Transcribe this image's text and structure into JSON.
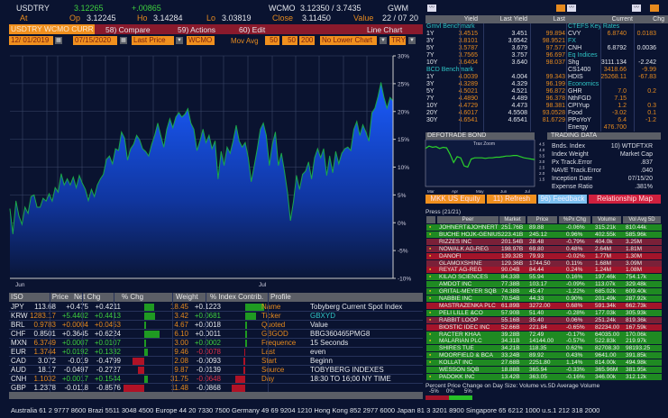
{
  "quote": {
    "symbol": "USDTRY",
    "last": "3.12265",
    "change": "+.00865",
    "source": "WCMO",
    "bid_ask": "3.12350 / 3.7435",
    "gwm": "GWM",
    "at_label": "At",
    "op_label": "Op",
    "open": "3.12245",
    "ho_label": "Ho",
    "high": "3.14284",
    "lo_label": "Lo",
    "low": "3.03819",
    "close_label": "Close",
    "close": "3.11450",
    "value_label": "Value",
    "value": "22 / 07 20"
  },
  "menu": {
    "security": "USDTRY  WCMO  CURR",
    "compare": "58) Compare",
    "actions": "59) Actions",
    "edit": "60) Edit",
    "chart_type": "Line Chart"
  },
  "controls": {
    "start_date": "12/ 01/2019",
    "end_date": "07/15/2020",
    "field": "Last Price",
    "source": "WCMO",
    "mov_avg_label": "Mov  Avg",
    "ma1": "50",
    "ma2": "50",
    "ma3": "200",
    "lower_chart": "No Lower  Chart",
    "currency": "TRY"
  },
  "chart_data": {
    "type": "area",
    "title": "USDTRY Line Chart",
    "x_tick_labels": [
      "Jun",
      "Jul"
    ],
    "y_tick_labels": [
      "30%",
      "25%",
      "20%",
      "15%",
      "10%",
      "5%",
      "0%",
      "-5%",
      "-10%"
    ],
    "ylim": [
      -10,
      30
    ],
    "ylabel": "%",
    "grid": true,
    "values": [
      2.5,
      -2.0,
      3.9,
      1.2,
      -0.3,
      2.8,
      1.7,
      4.7,
      5.0,
      2.8,
      2.8,
      4.4,
      3.9,
      5.2,
      3.9,
      6.3,
      5.5,
      8.8,
      6.8,
      7.9,
      6.8,
      8.2,
      6.3,
      8.5,
      7.1,
      6.0,
      4.0,
      6.0,
      4.7,
      6.8,
      7.9,
      8.7,
      11.4,
      12.0,
      10.6,
      13.3,
      13.0,
      16.3,
      15.2,
      11.3,
      13.3,
      14.1,
      15.7,
      14.9,
      13.3,
      12.8,
      12.0,
      14.1,
      15.7,
      17.9,
      15.7,
      13.6,
      16.8,
      18.7,
      17.1,
      19.0,
      19.8,
      19.0,
      19.5,
      20.5,
      17.9,
      16.8,
      13.0,
      14.7,
      16.8,
      14.4,
      15.7,
      13.3,
      14.7,
      7.9,
      12.8,
      10.3,
      13.6,
      12.5,
      14.7,
      17.5,
      14.7,
      13.6,
      14.4,
      11.7,
      7.4,
      10.3,
      13.3,
      16.8,
      17.9,
      15.7,
      10.3,
      14.1,
      16.3,
      10.3,
      12.5,
      9.3,
      5.5,
      0.4,
      3.9,
      8.5,
      6.0,
      8.7,
      9.3,
      10.9,
      7.9,
      11.7,
      13.3,
      11.7,
      13.3,
      8.5,
      12.0,
      9.0,
      12.8,
      10.6,
      12.5,
      13.3,
      13.6,
      13.0,
      16.8,
      18.2,
      15.7,
      17.6,
      16.3,
      14.7,
      19.8,
      20.6,
      22.7,
      25.2,
      22.5,
      20.6,
      22.5,
      21.9
    ]
  },
  "rates": {
    "headers": [
      "Yield",
      "Last Yield",
      "Last",
      "Current",
      "Chg"
    ],
    "left": [
      {
        "section": "Gmvl Benchmark"
      },
      {
        "t": "1Y",
        "y": "3.4515",
        "ly": "3.451",
        "l": "99.894"
      },
      {
        "t": "3Y",
        "y": "3.8101",
        "ly": "3.6542",
        "l": "98.9521"
      },
      {
        "t": "5Y",
        "y": "3.5787",
        "ly": "3.679",
        "l": "97.577"
      },
      {
        "t": "7Y",
        "y": "3.7565",
        "ly": "3.757",
        "l": "96.697"
      },
      {
        "t": "10Y",
        "y": "3.6404",
        "ly": "3.640",
        "l": "98.037"
      },
      {
        "section": "BCD Benchmark"
      },
      {
        "t": "1Y",
        "y": "4.0039",
        "ly": "4.004",
        "l": "99.343"
      },
      {
        "t": "3Y",
        "y": "4.3289",
        "ly": "4.329",
        "l": "96.199"
      },
      {
        "t": "5Y",
        "y": "4.5021",
        "ly": "4.521",
        "l": "96.872"
      },
      {
        "t": "7Y",
        "y": "4.4890",
        "ly": "4.489",
        "l": "96.378"
      },
      {
        "t": "10Y",
        "y": "4.4729",
        "ly": "4.473",
        "l": "98.381"
      },
      {
        "t": "20Y",
        "y": "4.6017",
        "ly": "4.5508",
        "l": "93.0528"
      },
      {
        "t": "30Y",
        "y": "4.6541",
        "ly": "4.6541",
        "l": "81.6729"
      }
    ],
    "right": [
      {
        "section": "CTEFS Key Rates"
      },
      {
        "t": "CVY",
        "c": "6.8740",
        "g": "0.0183",
        "col": "or"
      },
      {
        "section": "FX"
      },
      {
        "t": "CNH",
        "c": "6.8792",
        "g": "0.0036",
        "col": "wh"
      },
      {
        "section": "Eq Indices"
      },
      {
        "t": "Shg",
        "c": "3111.134",
        "g": "-2.242",
        "col": "wh"
      },
      {
        "t": "CS1400",
        "c": "3418.66",
        "g": "-9.99",
        "col": "or"
      },
      {
        "t": "HDIS",
        "c": "25268.11",
        "g": "-67.83",
        "col": "or"
      },
      {
        "section": "Economics"
      },
      {
        "t": "GHR",
        "c": "7.0",
        "g": "0.2",
        "col": "or"
      },
      {
        "t": "NthFGD",
        "c": "7.15",
        "g": "",
        "col": "or"
      },
      {
        "t": "CPIYup",
        "c": "1.2",
        "g": "0.3",
        "col": "or"
      },
      {
        "t": "Food",
        "c": "-3.02",
        "g": "0.1",
        "col": "or"
      },
      {
        "t": "PPoYoY",
        "c": "6.4",
        "g": "-1.2",
        "col": "or"
      },
      {
        "t": "Energy",
        "c": "476.700",
        "g": "",
        "col": "or"
      }
    ]
  },
  "bond": {
    "title": "DEFOTRADE BOND",
    "trax": "Trax  Zoom",
    "y_ticks": [
      "4.5",
      "4.0",
      "3.5",
      "3.0",
      "2.5",
      "2.0",
      "1.5"
    ],
    "x_ticks": [
      "Mar",
      "Apr",
      "May",
      "Jun",
      "Jul"
    ],
    "ylim": [
      1.0,
      4.7
    ],
    "values": [
      4.1,
      4.3,
      4.2,
      4.25,
      4.1,
      4.2,
      4.15,
      3.6,
      2.9,
      3.4,
      3.3,
      2.6,
      2.5,
      3.2,
      3.3,
      3.3,
      3.3,
      3.25,
      3.3,
      3.3,
      3.35,
      3.35,
      3.4,
      3.45,
      3.45,
      3.5,
      3.5,
      3.4,
      3.3,
      3.25,
      3.2,
      3.15
    ]
  },
  "trading": {
    "title": "TRADING DATA",
    "rows": [
      {
        "k": "Bnds. Index",
        "v": "10) WTDFTXR"
      },
      {
        "k": "Index Weight",
        "v": "Market Cap"
      },
      {
        "k": "Px Track.Error",
        "v": ".837"
      },
      {
        "k": "NAVE Track.Error",
        "v": ".040"
      },
      {
        "k": "Inception Date",
        "v": "07/15/20"
      },
      {
        "k": "Expense Ratio",
        "v": ".381%"
      }
    ]
  },
  "buttons": {
    "equity": "MKK US Equity",
    "refresh": "11) Refresh",
    "feedback": "96) Feedback",
    "relmap": "Relationship Map"
  },
  "peers": {
    "title": "Press (21/21)",
    "headers": [
      "Peer",
      "Market Cap",
      "Price",
      "%Px Chg",
      "Volume",
      "Vol Avg 5D"
    ],
    "rows": [
      [
        "JOHNERT&JOHNERT",
        "251.76B",
        "89.88",
        "-0.06%",
        "315.21k",
        "810.44k",
        "g"
      ],
      [
        "BUCHE HOJK-GENIUS",
        "223.41B",
        "245.12",
        "0.96%",
        "402.55k",
        "585.96k",
        "g"
      ],
      [
        "RIZZES INC",
        "201.54B",
        "28.48",
        "-0.79%",
        "404.0k",
        "3.25M",
        "m"
      ],
      [
        "NOWALK AG-REG",
        "198.97B",
        "69.80",
        "0.48%",
        "2.64M",
        "1.81M",
        "m"
      ],
      [
        "DANOFI",
        "139.32B",
        "79.93",
        "-0.02%",
        "1.77M",
        "1.30M",
        "r"
      ],
      [
        "GLAMOXSHINE",
        "129.36B",
        "1744.50",
        "0.11%",
        "1.68M",
        "3.09M",
        "m"
      ],
      [
        "REYAT AG-REG",
        "90.04B",
        "84.44",
        "0.24%",
        "1.24M",
        "1.08M",
        "r"
      ],
      [
        "KILAO SCIENCES",
        "84.33B",
        "55.94",
        "0.16%",
        "197.46k",
        "754.17k",
        "g"
      ],
      [
        "AMDOT INC",
        "77.38B",
        "103.17",
        "-0.09%",
        "113.07k",
        "329.48k",
        "g"
      ],
      [
        "GRITAL-MEYER SQB",
        "74.38B",
        "45.47",
        "-1.22%",
        "685.02k",
        "609.40k",
        "g"
      ],
      [
        "NABBIE INC",
        "70.54B",
        "44.33",
        "0.90%",
        "201.49k",
        "287.92k",
        "g"
      ],
      [
        "MASTRAZENKA PLC",
        "61.89B",
        "3272.00",
        "0.68%",
        "591.34k",
        "662.73k",
        "r"
      ],
      [
        "PELI LILLE &CO",
        "57.90B",
        "51.40",
        "-0.28%",
        "177.03k",
        "305.93k",
        "g"
      ],
      [
        "RABBIT LOOP",
        "55.16B",
        "35.40",
        "0.06%",
        "251.24k",
        "819.36k",
        "m"
      ],
      [
        "BIOSTIC IDEC INC",
        "52.66B",
        "221.84",
        "-0.65%",
        "82234.00",
        "167.59k",
        "r"
      ],
      [
        "RACTER KHAA",
        "39.28B",
        "72.49",
        "-0.17%",
        "64035.00",
        "170.06k",
        "g"
      ],
      [
        "MALARIAN PLC",
        "34.31B",
        "14144.00",
        "-0.57%",
        "522.83k",
        "219.97k",
        "g"
      ],
      [
        "SHIRES TUE",
        "34.21B",
        "118.35",
        "0.62%",
        "82708.30",
        "98193.25",
        "g"
      ],
      [
        "MOORFIELD & BCA",
        "33.24B",
        "89.92",
        "0.43%",
        "9641.00",
        "391.85k",
        "g"
      ],
      [
        "KOLLAT INC",
        "27.68B",
        "2251.80",
        "1.14%",
        "814.00k",
        "494.98k",
        "g"
      ],
      [
        "WESSON  SQB",
        "18.88B",
        "365.94",
        "-0.33%",
        "365.96M",
        "381.95k",
        "g"
      ],
      [
        "PADOKK INC",
        "13.42B",
        "363.05",
        "-0.16%",
        "346.00k",
        "312.12k",
        "g"
      ]
    ],
    "legend_text": "Percent Price Change on Day    Size: Volume vs.5D Average Volume",
    "legend_ticks": [
      "-5%",
      "0%",
      "5%"
    ]
  },
  "fx": {
    "headers": [
      "ISO",
      "Price",
      "Net Chg",
      "% Chg",
      "Weight",
      "% Index Contrib."
    ],
    "rows": [
      {
        "iso": "JPY",
        "price": "113.68",
        "net": "+0.475",
        "pct": "+0.4211",
        "pctv": 0.4211,
        "w": "18.45",
        "ic": "+0.1223",
        "icv": 0.1223,
        "pc": "wh",
        "nc": "wh",
        "icc": "wh"
      },
      {
        "iso": "KRW",
        "price": "1283.17",
        "net": "+5.4402",
        "pct": "+0.4413",
        "pctv": 0.4413,
        "w": "3.42",
        "ic": "+0.0681",
        "icv": 0.0681,
        "pc": "or",
        "nc": "gr",
        "icc": "gr"
      },
      {
        "iso": "BRL",
        "price": "0.9783",
        "net": "+0.0004",
        "pct": "+0.0453",
        "pctv": 0.0453,
        "w": "4.67",
        "ic": "+0.0018",
        "icv": 0.0018,
        "pc": "or",
        "nc": "or",
        "icc": "wh"
      },
      {
        "iso": "CHF",
        "price": "0.8501",
        "net": "+0.3645",
        "pct": "+0.6224",
        "pctv": 0.6224,
        "w": "6.10",
        "ic": "+0.0011",
        "icv": 0.0011,
        "pc": "wh",
        "nc": "wh",
        "icc": "wh"
      },
      {
        "iso": "MXN",
        "price": "6.3749",
        "net": "+0.0007",
        "pct": "+0.0107",
        "pctv": 0.0107,
        "w": "3.00",
        "ic": "+0.0002",
        "icv": 0.0002,
        "pc": "or",
        "nc": "gr",
        "icc": "gr"
      },
      {
        "iso": "EUR",
        "price": "1.3744",
        "net": "+0.0192",
        "pct": "+0.1332",
        "pctv": 0.1332,
        "w": "9.46",
        "ic": "-0.0078",
        "icv": -0.0078,
        "pc": "or",
        "nc": "gr",
        "icc": "rd"
      },
      {
        "iso": "CAD",
        "price": "3.072",
        "net": "-0.019",
        "pct": "-0.4799",
        "pctv": -0.4799,
        "w": "2.08",
        "ic": "-0.0093",
        "icv": -0.0093,
        "pc": "wh",
        "nc": "wh",
        "icc": "wh"
      },
      {
        "iso": "AUD",
        "price": "18.17",
        "net": "-0.0497",
        "pct": "-0.2727",
        "pctv": -0.2727,
        "w": "9.87",
        "ic": "-0.0139",
        "icv": -0.0139,
        "pc": "wh",
        "nc": "wh",
        "icc": "wh"
      },
      {
        "iso": "CNH",
        "price": "1.1032",
        "net": "+0.0017",
        "pct": "+0.1544",
        "pctv": 0.1544,
        "w": "31.75",
        "ic": "-0.0648",
        "icv": -0.0648,
        "pc": "or",
        "nc": "gr",
        "icc": "rd"
      },
      {
        "iso": "GBP",
        "price": "1.2378",
        "net": "-0.0118",
        "pct": "-0.8576",
        "pctv": -0.8576,
        "w": "11.48",
        "ic": "-0.0868",
        "icv": -0.0868,
        "pc": "wh",
        "nc": "wh",
        "icc": "wh"
      }
    ]
  },
  "profile": {
    "title": "Profile",
    "rows": [
      {
        "k": "Name",
        "v": "Tobyberg Current Spot Index"
      },
      {
        "k": "Ticker",
        "v": "GBXYD"
      },
      {
        "k": "Quoted",
        "v": "Value"
      },
      {
        "k": "GBGOD",
        "v": "BBG360465PMG8"
      },
      {
        "k": "Frequence",
        "v": "15 Seconds"
      },
      {
        "k": "Last",
        "v": "even"
      },
      {
        "k": "Start",
        "v": "Beginn"
      },
      {
        "k": "Source",
        "v": "TOBYBERG INDEXES"
      },
      {
        "k": "Day",
        "v": "18:30 TO 16;00 NY TIME"
      }
    ]
  },
  "footer": "Australia 61 2 9777 8600 Brazi 5511 3048 4500 Europe 44 20 7330 7500 Germany 49 69 9204 1210 Hong Kong 852 2977 6000 Japan 81 3 3201 8900    Singapore 65 6212 1000     u.s.1 212 318 2000",
  "colors": {
    "bg": "#0a1330",
    "orange": "#f0901e",
    "green": "#3fd03f",
    "red_bar": "#8a1a2c",
    "row_green": "#1f8a22",
    "row_red": "#a3142a",
    "row_muted": "#7a2038",
    "area": "#1450e0"
  }
}
